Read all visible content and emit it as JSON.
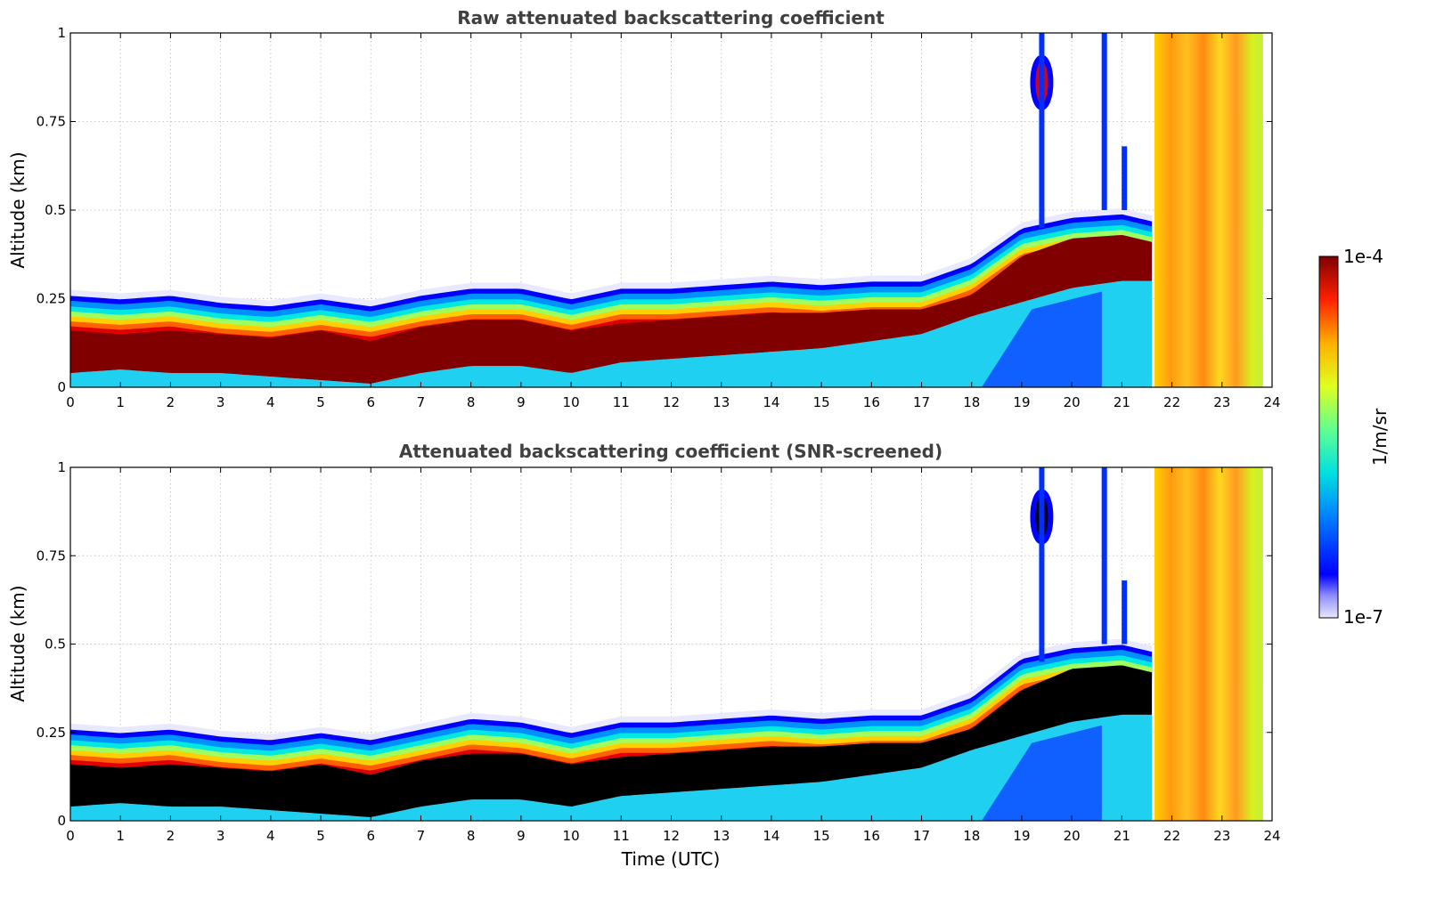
{
  "chart_data": [
    {
      "type": "heatmap",
      "title": "Raw attenuated backscattering coefficient",
      "xlabel": "",
      "ylabel": "Altitude (km)",
      "xlim": [
        0,
        24
      ],
      "ylim": [
        0,
        1
      ],
      "x_ticks": [
        "0",
        "1",
        "2",
        "3",
        "4",
        "5",
        "6",
        "7",
        "8",
        "9",
        "10",
        "11",
        "12",
        "13",
        "14",
        "15",
        "16",
        "17",
        "18",
        "19",
        "20",
        "21",
        "22",
        "23",
        "24"
      ],
      "y_ticks": [
        "0",
        "0.25",
        "0.5",
        "0.75",
        "1"
      ],
      "grid": true,
      "layer_profile": {
        "time_utc": [
          0,
          1,
          2,
          3,
          4,
          5,
          6,
          7,
          8,
          9,
          10,
          11,
          12,
          13,
          14,
          15,
          16,
          17,
          18,
          19,
          20,
          21,
          21.6
        ],
        "layer_top_km": [
          0.24,
          0.23,
          0.24,
          0.22,
          0.21,
          0.23,
          0.21,
          0.24,
          0.26,
          0.26,
          0.23,
          0.26,
          0.26,
          0.27,
          0.28,
          0.27,
          0.28,
          0.28,
          0.33,
          0.43,
          0.46,
          0.47,
          0.45
        ],
        "saturated_top_km": [
          0.16,
          0.15,
          0.16,
          0.15,
          0.14,
          0.16,
          0.13,
          0.17,
          0.19,
          0.19,
          0.16,
          0.18,
          0.19,
          0.2,
          0.21,
          0.21,
          0.22,
          0.22,
          0.26,
          0.37,
          0.42,
          0.43,
          0.41
        ],
        "saturated_bottom_km": [
          0.04,
          0.05,
          0.04,
          0.04,
          0.03,
          0.02,
          0.01,
          0.04,
          0.06,
          0.06,
          0.04,
          0.07,
          0.08,
          0.09,
          0.1,
          0.11,
          0.13,
          0.15,
          0.2,
          0.24,
          0.28,
          0.3,
          0.3
        ]
      },
      "saturation_color": "#800000"
    },
    {
      "type": "heatmap",
      "title": "Attenuated backscattering coefficient (SNR-screened)",
      "xlabel": "Time (UTC)",
      "ylabel": "Altitude (km)",
      "xlim": [
        0,
        24
      ],
      "ylim": [
        0,
        1
      ],
      "x_ticks": [
        "0",
        "1",
        "2",
        "3",
        "4",
        "5",
        "6",
        "7",
        "8",
        "9",
        "10",
        "11",
        "12",
        "13",
        "14",
        "15",
        "16",
        "17",
        "18",
        "19",
        "20",
        "21",
        "22",
        "23",
        "24"
      ],
      "y_ticks": [
        "0",
        "0.25",
        "0.5",
        "0.75",
        "1"
      ],
      "grid": true,
      "layer_profile": {
        "time_utc": [
          0,
          1,
          2,
          3,
          4,
          5,
          6,
          7,
          8,
          9,
          10,
          11,
          12,
          13,
          14,
          15,
          16,
          17,
          18,
          19,
          20,
          21,
          21.6
        ],
        "layer_top_km": [
          0.24,
          0.23,
          0.24,
          0.22,
          0.21,
          0.23,
          0.21,
          0.24,
          0.27,
          0.26,
          0.23,
          0.26,
          0.26,
          0.27,
          0.28,
          0.27,
          0.28,
          0.28,
          0.33,
          0.44,
          0.47,
          0.48,
          0.46
        ],
        "saturated_top_km": [
          0.16,
          0.15,
          0.16,
          0.15,
          0.14,
          0.16,
          0.13,
          0.17,
          0.19,
          0.19,
          0.16,
          0.18,
          0.19,
          0.2,
          0.21,
          0.21,
          0.22,
          0.22,
          0.26,
          0.37,
          0.43,
          0.44,
          0.42
        ],
        "saturated_bottom_km": [
          0.04,
          0.05,
          0.04,
          0.04,
          0.03,
          0.02,
          0.01,
          0.04,
          0.06,
          0.06,
          0.04,
          0.07,
          0.08,
          0.09,
          0.1,
          0.11,
          0.13,
          0.15,
          0.2,
          0.24,
          0.28,
          0.3,
          0.3
        ]
      },
      "saturation_color": "#000000"
    }
  ],
  "colorbar": {
    "label": "1/m/sr",
    "max_label": "1e-4",
    "min_label": "1e-7",
    "scale": "log",
    "colormap": "jet"
  }
}
